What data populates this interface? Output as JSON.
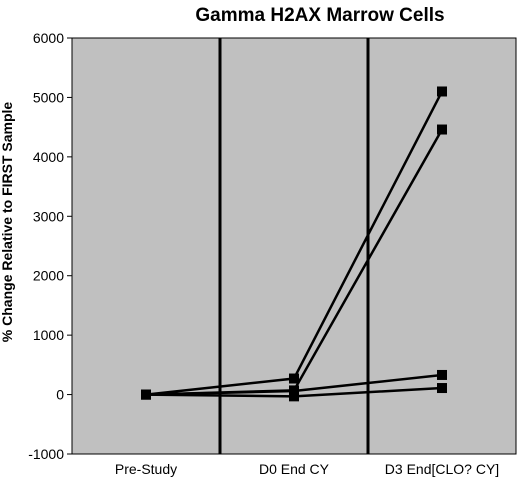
{
  "chart_data": {
    "type": "line",
    "title": "Gamma H2AX Marrow Cells",
    "xlabel": "",
    "ylabel": "% Change Relative to FIRST Sample",
    "categories": [
      "Pre-Study",
      "D0 End CY",
      "D3 End[CLO? CY]"
    ],
    "ylim": [
      -1000,
      6000
    ],
    "yticks": [
      -1000,
      0,
      1000,
      2000,
      3000,
      4000,
      5000,
      6000
    ],
    "series": [
      {
        "values": [
          0,
          270,
          5100
        ]
      },
      {
        "values": [
          0,
          70,
          4460
        ]
      },
      {
        "values": [
          0,
          60,
          330
        ]
      },
      {
        "values": [
          0,
          -30,
          110
        ]
      }
    ],
    "vertical_lines_between_categories": true,
    "grid": false,
    "plot_background": "#c0c0c0",
    "line_color": "#000000",
    "marker": "square"
  }
}
